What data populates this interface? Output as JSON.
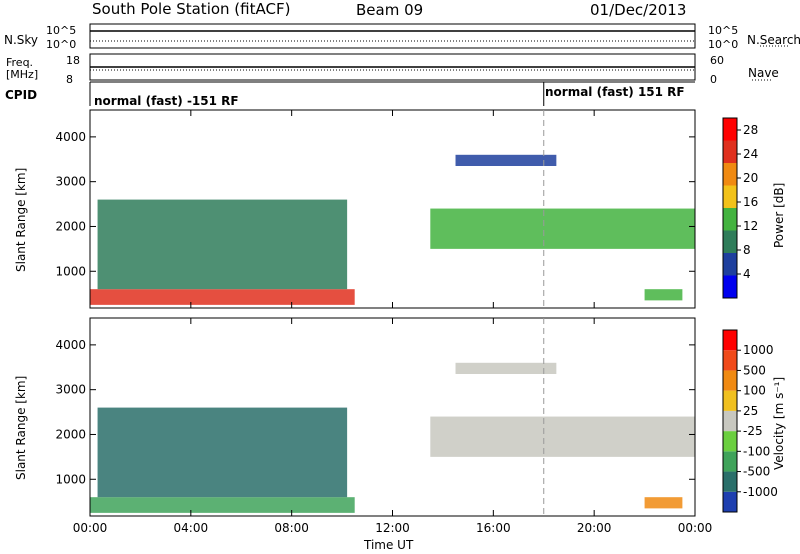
{
  "header": {
    "station": "South Pole Station (fitACF)",
    "beam": "Beam 09",
    "date": "01/Dec/2013"
  },
  "top_panels": {
    "nsky_label": "N.Sky",
    "nsky_ticks": [
      "10^5",
      "10^0"
    ],
    "nsearch_label": "N.Search",
    "nsearch_ticks": [
      "10^5",
      "10^0"
    ],
    "freq_label_top": "Freq.",
    "freq_label_unit": "[MHz]",
    "freq_ticks": [
      "18",
      "8"
    ],
    "nave_label": "Nave",
    "nave_ticks": [
      "60",
      "0"
    ],
    "cpid_label": "CPID",
    "cpid_segments": [
      {
        "label": "normal (fast) -151 RF",
        "start_hour": 0
      },
      {
        "label": "normal (fast) 151 RF",
        "start_hour": 18
      }
    ]
  },
  "chart_data": [
    {
      "type": "heatmap",
      "name": "power",
      "ylabel": "Slant Range [km]",
      "xlabel": "Time UT",
      "x_ticks": [
        "00:00",
        "04:00",
        "08:00",
        "12:00",
        "16:00",
        "20:00",
        "00:00"
      ],
      "y_ticks": [
        1000,
        2000,
        3000,
        4000
      ],
      "ylim": [
        180,
        4600
      ],
      "xlim_hours": [
        0,
        24
      ],
      "colorbar_label": "Power [dB]",
      "colorbar_ticks": [
        4,
        8,
        12,
        16,
        20,
        24,
        28
      ],
      "colorbar_range": [
        0,
        30
      ],
      "colorbar_colors": [
        "#0000ee",
        "#1e3f9e",
        "#2f7d5a",
        "#43b33f",
        "#f2c21a",
        "#f08a12",
        "#e0301e",
        "#ff0000"
      ],
      "vertical_marker_hour": 18,
      "echo_regions": [
        {
          "t0": 0.0,
          "t1": 10.5,
          "r0": 250,
          "r1": 600,
          "level": 6
        },
        {
          "t0": 0.3,
          "t1": 10.2,
          "r0": 600,
          "r1": 2600,
          "level": 2
        },
        {
          "t0": 13.5,
          "t1": 24.0,
          "r0": 1500,
          "r1": 2400,
          "level": 3
        },
        {
          "t0": 14.5,
          "t1": 18.5,
          "r0": 3350,
          "r1": 3600,
          "level": 1
        },
        {
          "t0": 22.0,
          "t1": 23.5,
          "r0": 350,
          "r1": 600,
          "level": 3
        }
      ]
    },
    {
      "type": "heatmap",
      "name": "velocity",
      "ylabel": "Slant Range [km]",
      "xlabel": "Time UT",
      "x_ticks": [
        "00:00",
        "04:00",
        "08:00",
        "12:00",
        "16:00",
        "20:00",
        "00:00"
      ],
      "y_ticks": [
        1000,
        2000,
        3000,
        4000
      ],
      "ylim": [
        180,
        4600
      ],
      "xlim_hours": [
        0,
        24
      ],
      "colorbar_label": "Velocity [m s⁻¹]",
      "colorbar_ticks": [
        "1000",
        "500",
        "100",
        "25",
        "-25",
        "-100",
        "-500",
        "-1000"
      ],
      "colorbar_colors": [
        "#1e3fb0",
        "#2a6f6a",
        "#3fa35a",
        "#6bcf3f",
        "#c8c8c0",
        "#f0c020",
        "#f08a12",
        "#f04a1a",
        "#ff0000"
      ],
      "vertical_marker_hour": 18,
      "echo_regions": [
        {
          "t0": 0.0,
          "t1": 10.5,
          "r0": 250,
          "r1": 600,
          "level": 2
        },
        {
          "t0": 0.3,
          "t1": 10.2,
          "r0": 600,
          "r1": 2600,
          "level": 1
        },
        {
          "t0": 13.5,
          "t1": 24.0,
          "r0": 1500,
          "r1": 2400,
          "level": 4
        },
        {
          "t0": 14.5,
          "t1": 18.5,
          "r0": 3350,
          "r1": 3600,
          "level": 4
        },
        {
          "t0": 22.0,
          "t1": 23.5,
          "r0": 350,
          "r1": 600,
          "level": 6
        }
      ]
    }
  ],
  "x_axis_title": "Time UT"
}
